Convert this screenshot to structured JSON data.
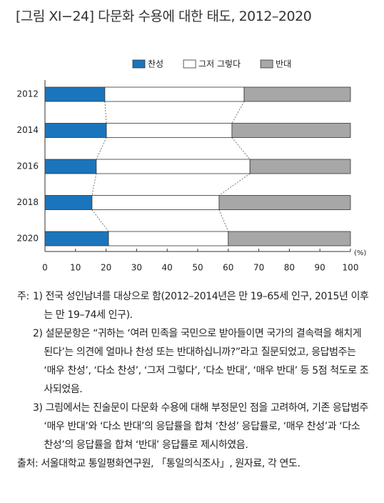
{
  "title": "[그림 XI−24] 다문화 수용에 대한 태도, 2012–2020",
  "chart_data": {
    "type": "bar",
    "orientation": "horizontal",
    "stacked": true,
    "categories": [
      "2012",
      "2014",
      "2016",
      "2018",
      "2020"
    ],
    "series": [
      {
        "name": "찬성",
        "color": "#1b75bc",
        "values": [
          19.6,
          20.1,
          16.8,
          15.4,
          20.8
        ]
      },
      {
        "name": "그저 그렇다",
        "color": "#ffffff",
        "values": [
          45.6,
          41.1,
          50.3,
          41.6,
          39.2
        ]
      },
      {
        "name": "반대",
        "color": "#a7a7a7",
        "values": [
          34.8,
          38.8,
          32.9,
          43.0,
          40.0
        ]
      }
    ],
    "xlim": [
      0,
      100
    ],
    "xticks": [
      0,
      10,
      20,
      30,
      40,
      50,
      60,
      70,
      80,
      90,
      100
    ],
    "x_unit": "(%)",
    "legend": "top"
  },
  "notes_label": "주:",
  "notes": [
    "1) 전국 성인남녀를 대상으로 함(2012–2014년은 만 19–65세 인구, 2015년 이후는 만 19–74세 인구).",
    "2) 설문문항은 “귀하는 ‘여러 민족을 국민으로 받아들이면 국가의 결속력을 해치게 된다’는 의견에 얼마나 찬성 또는 반대하십니까?”라고 질문되었고, 응답범주는 ‘매우 찬성’, ‘다소 찬성’, ‘그저 그렇다’, ‘다소 반대’, ‘매우 반대’ 등 5점 척도로 조사되었음.",
    "3) 그림에서는 진술문이 다문화 수용에 대해 부정문인 점을 고려하여, 기존 응답범주 ‘매우 반대’와 ‘다소 반대’의 응답률을 합쳐 ‘찬성’ 응답률로, ‘매우 찬성’과 ‘다소 찬성’의 응답률을 합쳐 ‘반대’ 응답률로 제시하였음."
  ],
  "source": "출처: 서울대학교 통일평화연구원, 「통일의식조사」, 원자료, 각 연도."
}
